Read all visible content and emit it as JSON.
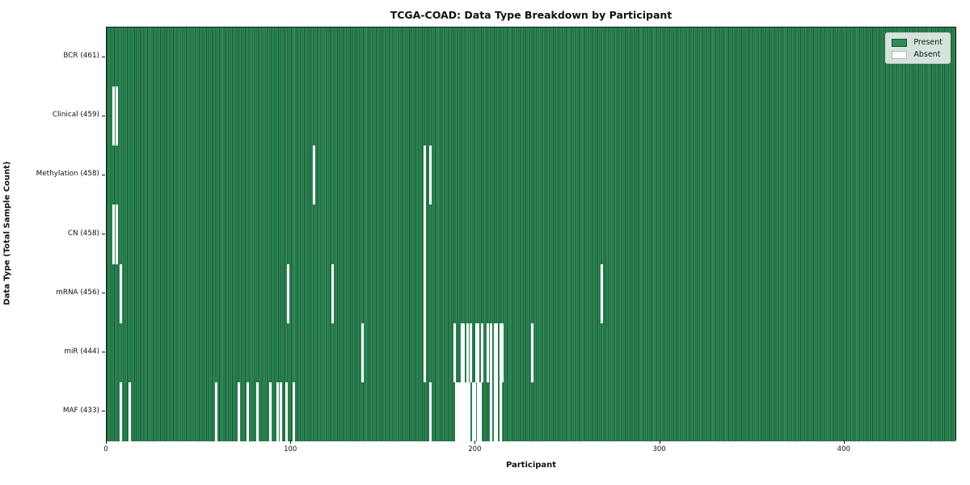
{
  "title": "TCGA-COAD: Data Type Breakdown by Participant",
  "chart_data": {
    "type": "heatmap",
    "title": "TCGA-COAD: Data Type Breakdown by Participant",
    "xlabel": "Participant",
    "ylabel": "Data Type (Total Sample Count)",
    "n_participants": 461,
    "x_ticks": [
      0,
      100,
      200,
      300,
      400
    ],
    "legend_position": "upper right",
    "grid": false,
    "legend": [
      {
        "label": "Present",
        "color": "#2e8b57"
      },
      {
        "label": "Absent",
        "color": "#ffffff"
      }
    ],
    "colors": {
      "present": "#2e8b57",
      "present_edge": "#1c5434",
      "absent": "#ffffff",
      "separator": "#141414"
    },
    "rows": [
      {
        "label": "BCR (461)",
        "data_type": "BCR",
        "present_count": 461,
        "absent_participants": []
      },
      {
        "label": "Clinical (459)",
        "data_type": "Clinical",
        "present_count": 459,
        "absent_participants": [
          3,
          5
        ]
      },
      {
        "label": "Methylation (458)",
        "data_type": "Methylation",
        "present_count": 458,
        "absent_participants": [
          112,
          172,
          175
        ]
      },
      {
        "label": "CN (458)",
        "data_type": "CN",
        "present_count": 458,
        "absent_participants": [
          3,
          5,
          172
        ]
      },
      {
        "label": "mRNA (456)",
        "data_type": "mRNA",
        "present_count": 456,
        "absent_participants": [
          7,
          98,
          122,
          172,
          268
        ]
      },
      {
        "label": "miR (444)",
        "data_type": "miR",
        "present_count": 444,
        "absent_participants": [
          138,
          172,
          188,
          192,
          193,
          195,
          197,
          200,
          201,
          203,
          206,
          208,
          210,
          211,
          213,
          214,
          230
        ]
      },
      {
        "label": "MAF (433)",
        "data_type": "MAF",
        "present_count": 433,
        "absent_participants": [
          7,
          12,
          59,
          71,
          76,
          81,
          88,
          92,
          94,
          97,
          101,
          175,
          189,
          190,
          191,
          192,
          193,
          194,
          195,
          196,
          198,
          199,
          201,
          202,
          208,
          210,
          211,
          213
        ]
      }
    ]
  }
}
